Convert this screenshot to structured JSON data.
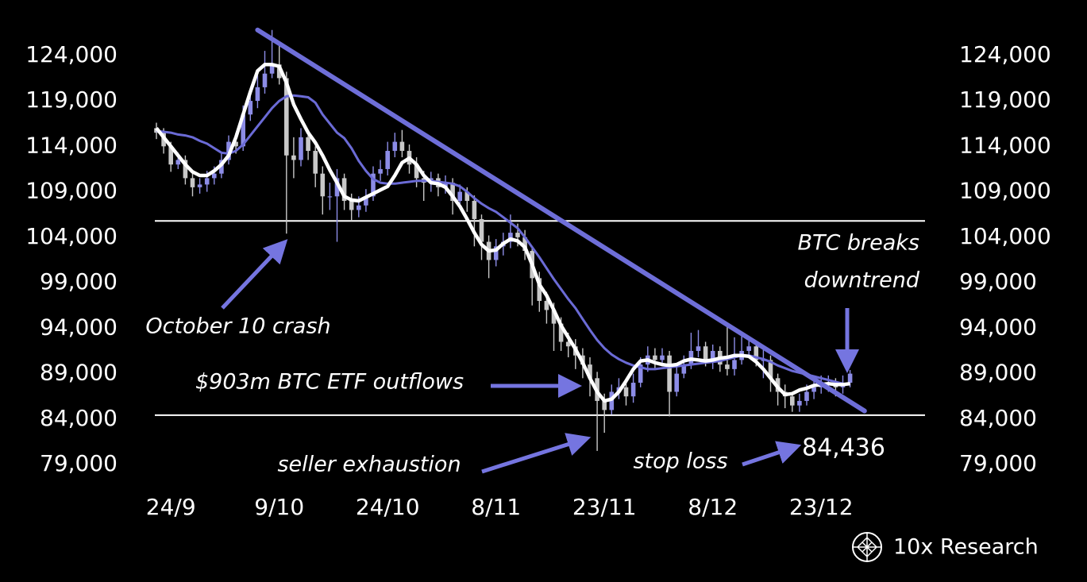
{
  "chart_data": {
    "type": "candlestick",
    "categories": [
      null,
      null,
      "24/9",
      null,
      null,
      null,
      null,
      null,
      null,
      null,
      null,
      null,
      null,
      null,
      null,
      null,
      null,
      "9/10",
      null,
      null,
      null,
      null,
      null,
      null,
      null,
      null,
      null,
      null,
      null,
      null,
      null,
      null,
      "24/10",
      null,
      null,
      null,
      null,
      null,
      null,
      null,
      null,
      null,
      null,
      null,
      null,
      null,
      null,
      "8/11",
      null,
      null,
      null,
      null,
      null,
      null,
      null,
      null,
      null,
      null,
      null,
      null,
      null,
      null,
      "23/11",
      null,
      null,
      null,
      null,
      null,
      null,
      null,
      null,
      null,
      null,
      null,
      null,
      null,
      null,
      "8/12",
      null,
      null,
      null,
      null,
      null,
      null,
      null,
      null,
      null,
      null,
      null,
      null,
      null,
      null,
      "23/12",
      null,
      null,
      null,
      null
    ],
    "open": [
      116000,
      115500,
      114000,
      112000,
      112500,
      110500,
      109500,
      109800,
      110500,
      111000,
      112500,
      114500,
      114000,
      117500,
      119000,
      120500,
      122000,
      123000,
      121500,
      113000,
      112500,
      115000,
      113500,
      111000,
      108500,
      108500,
      110500,
      108000,
      107000,
      107500,
      108500,
      111000,
      111500,
      113500,
      114500,
      113500,
      112000,
      110500,
      110000,
      110500,
      109500,
      110000,
      108000,
      109000,
      108000,
      106000,
      103500,
      101500,
      103000,
      103500,
      104500,
      104000,
      102500,
      99500,
      97000,
      96000,
      94500,
      92500,
      92000,
      91000,
      90000,
      88500,
      86000,
      85000,
      87000,
      87500,
      86500,
      88000,
      90000,
      91000,
      90500,
      91000,
      87000,
      89000,
      90000,
      91500,
      92000,
      90500,
      91500,
      90000,
      89500,
      90500,
      91500,
      92000,
      90500,
      90500,
      88500,
      87000,
      86500,
      85500,
      86000,
      87000,
      87500,
      88000,
      88000,
      87500,
      88000
    ],
    "high": [
      116600,
      116000,
      114500,
      113300,
      113000,
      111200,
      110500,
      111300,
      111800,
      113300,
      115200,
      115500,
      118500,
      120000,
      121800,
      124500,
      126800,
      125500,
      122200,
      115000,
      116000,
      115800,
      114000,
      111800,
      110000,
      111500,
      111000,
      108800,
      108500,
      109300,
      111800,
      112500,
      114500,
      115500,
      115800,
      114200,
      112800,
      111300,
      111200,
      111000,
      110800,
      110500,
      109800,
      109500,
      108600,
      106500,
      104200,
      103800,
      104500,
      106500,
      105500,
      104800,
      103000,
      100200,
      98000,
      96800,
      95200,
      93500,
      92800,
      91800,
      90800,
      89200,
      86800,
      87800,
      88500,
      88200,
      89000,
      90800,
      92000,
      91800,
      91800,
      91500,
      89800,
      91000,
      93500,
      93800,
      92500,
      92200,
      92000,
      94500,
      93000,
      93500,
      92800,
      92500,
      91800,
      91000,
      89000,
      87800,
      87000,
      86800,
      87800,
      88300,
      88800,
      88800,
      88500,
      88800,
      89400
    ],
    "low": [
      114800,
      113200,
      111200,
      111500,
      109800,
      108500,
      108800,
      109000,
      109800,
      110500,
      112000,
      113200,
      113500,
      116800,
      118200,
      119800,
      121500,
      120800,
      104400,
      110500,
      111800,
      112500,
      109500,
      106500,
      107000,
      103500,
      107000,
      105800,
      106200,
      106800,
      108000,
      110200,
      110800,
      112800,
      112800,
      111000,
      109500,
      108000,
      109000,
      108500,
      108800,
      106500,
      107200,
      106800,
      103000,
      101500,
      99500,
      100800,
      102000,
      102800,
      103000,
      101500,
      96500,
      95800,
      94500,
      91500,
      91500,
      90800,
      89500,
      88500,
      86500,
      80500,
      82500,
      84500,
      86200,
      85500,
      85800,
      87500,
      89200,
      89500,
      89800,
      84300,
      86500,
      88500,
      89500,
      90800,
      89800,
      89500,
      89200,
      88800,
      88800,
      90000,
      90800,
      89800,
      88500,
      87000,
      85500,
      85200,
      84800,
      84800,
      85500,
      86200,
      86800,
      87000,
      86500,
      86800,
      87500
    ],
    "close": [
      115500,
      114000,
      112000,
      112500,
      110500,
      109500,
      109800,
      110500,
      111000,
      112500,
      114500,
      114000,
      117500,
      119000,
      120500,
      122000,
      123000,
      121500,
      113000,
      112500,
      115000,
      113500,
      111000,
      108500,
      108500,
      110500,
      108000,
      107000,
      107500,
      108500,
      111000,
      111500,
      113500,
      114500,
      113500,
      112000,
      110500,
      110000,
      110500,
      109500,
      110000,
      108000,
      109000,
      108000,
      106000,
      103500,
      101500,
      103000,
      103500,
      104500,
      104000,
      102500,
      99500,
      97000,
      96000,
      94500,
      92500,
      92000,
      91000,
      90000,
      88500,
      86000,
      85000,
      87000,
      87500,
      86500,
      88000,
      90000,
      91000,
      90500,
      91000,
      87000,
      89000,
      90000,
      91500,
      92000,
      90500,
      91500,
      90000,
      89500,
      90500,
      91500,
      92000,
      90500,
      90500,
      88500,
      87000,
      86500,
      85500,
      86000,
      87000,
      87500,
      88000,
      88000,
      87500,
      88000,
      89000
    ],
    "up_color": "#8c8ce6",
    "down_color": "#c8c8c8",
    "series": [
      {
        "color": "#6b6bd6",
        "values": [
          115700,
          115600,
          115500,
          115300,
          115200,
          115000,
          114600,
          114300,
          113800,
          113300,
          113200,
          113500,
          114200,
          115200,
          116200,
          117200,
          118200,
          119000,
          119500,
          119600,
          119500,
          119400,
          118800,
          117500,
          116500,
          115500,
          114900,
          113800,
          112400,
          111300,
          110400,
          110000,
          109900,
          109900,
          110000,
          110100,
          110200,
          110200,
          110200,
          110100,
          110000,
          109900,
          109600,
          109000,
          108300,
          107700,
          107200,
          106800,
          106200,
          105600,
          105000,
          104000,
          102900,
          101800,
          100600,
          99400,
          98300,
          97200,
          96200,
          95000,
          93800,
          92700,
          91800,
          91100,
          90600,
          90200,
          89900,
          89700,
          89500,
          89500,
          89600,
          89700,
          89800,
          89900,
          90000,
          90100,
          90200,
          90300,
          90400,
          90600,
          90800,
          91000,
          91000,
          90800,
          90600,
          90300,
          89900,
          89600,
          89300,
          89100,
          88900,
          88700,
          88500,
          88300,
          88100,
          87900,
          87800
        ]
      },
      {
        "color": "#ffffff",
        "values": [
          116000,
          115000,
          114000,
          113000,
          112000,
          111200,
          110800,
          110800,
          111300,
          112000,
          113000,
          115000,
          117500,
          120000,
          122300,
          123000,
          123000,
          122800,
          121000,
          118600,
          117000,
          115500,
          114400,
          113000,
          111400,
          110000,
          108500,
          108100,
          108000,
          108400,
          108800,
          109200,
          109600,
          110800,
          112200,
          112700,
          112000,
          110800,
          110000,
          109900,
          109500,
          108500,
          107400,
          106000,
          104500,
          103200,
          102500,
          102600,
          103300,
          103800,
          103600,
          102900,
          101000,
          98800,
          97600,
          96000,
          94300,
          93000,
          91700,
          90200,
          88500,
          87000,
          86000,
          86200,
          87000,
          88200,
          89500,
          90400,
          90500,
          90200,
          90000,
          89900,
          90000,
          90400,
          90600,
          90500,
          90400,
          90500,
          90700,
          90800,
          91000,
          91000,
          90900,
          90300,
          89500,
          88500,
          87500,
          86700,
          86800,
          87200,
          87400,
          87700,
          87800,
          87900,
          87800,
          87800,
          87900
        ]
      }
    ],
    "trendline": {
      "color": "#6e6ed8",
      "x": [
        14,
        98
      ],
      "values": [
        126800,
        84900
      ]
    },
    "hlines": [
      105800,
      {
        "value": 84436,
        "label": "84,436"
      }
    ],
    "ylim": [
      77000,
      128000
    ],
    "yticks": [
      {
        "value": 79000,
        "label": "79,000"
      },
      {
        "value": 84000,
        "label": "84,000"
      },
      {
        "value": 89000,
        "label": "89,000"
      },
      {
        "value": 94000,
        "label": "94,000"
      },
      {
        "value": 99000,
        "label": "99,000"
      },
      {
        "value": 104000,
        "label": "104,000"
      },
      {
        "value": 109000,
        "label": "109,000"
      },
      {
        "value": 114000,
        "label": "114,000"
      },
      {
        "value": 119000,
        "label": "119,000"
      },
      {
        "value": 124000,
        "label": "124,000"
      }
    ],
    "annotations": [
      "October 10 crash",
      "$903m BTC ETF outflows",
      "seller exhaustion",
      "stop loss",
      "BTC breaks",
      "downtrend"
    ],
    "source": "10x Research"
  }
}
